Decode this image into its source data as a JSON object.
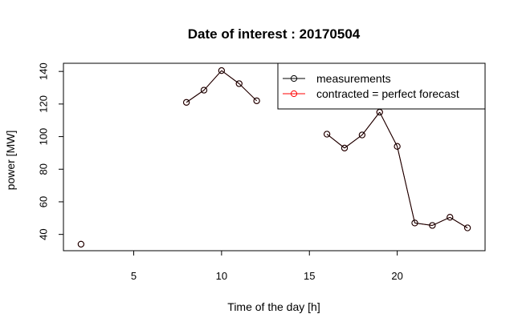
{
  "chart_data": {
    "type": "line",
    "title": "Date of interest : 20170504",
    "xlabel": "Time of the day [h]",
    "ylabel": "power [MW]",
    "xlim": [
      1,
      25
    ],
    "ylim": [
      30,
      145
    ],
    "xticks": [
      5,
      10,
      15,
      20
    ],
    "yticks": [
      40,
      60,
      80,
      100,
      120,
      140
    ],
    "grid": false,
    "legend_position": "top-right",
    "series": [
      {
        "name": "measurements",
        "color": "#000000",
        "marker": "open-circle",
        "x": [
          2,
          8,
          9,
          10,
          11,
          12,
          16,
          17,
          18,
          19,
          20,
          21,
          22,
          23,
          24
        ],
        "y": [
          34,
          121,
          128.5,
          140.5,
          132.5,
          122,
          101.5,
          93,
          101,
          115,
          94,
          47,
          45.5,
          50.5,
          44
        ]
      },
      {
        "name": "contracted = perfect forecast",
        "color": "#ff0000",
        "marker": "open-circle",
        "x": [
          2,
          8,
          9,
          10,
          11,
          12,
          16,
          17,
          18,
          19,
          20,
          21,
          22,
          23,
          24
        ],
        "y": [
          34,
          121,
          128.5,
          140.5,
          132.5,
          122,
          101.5,
          93,
          101,
          115,
          94,
          47,
          45.5,
          50.5,
          44
        ]
      }
    ]
  }
}
